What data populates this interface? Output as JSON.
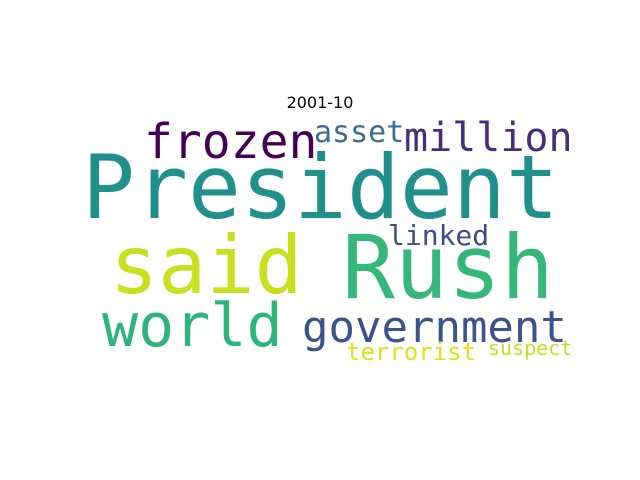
{
  "title": "2001-10",
  "words": [
    {
      "text": "President",
      "color": "#21908d"
    },
    {
      "text": "said",
      "color": "#c8e020"
    },
    {
      "text": "Rush",
      "color": "#35b779"
    },
    {
      "text": "world",
      "color": "#2eb37c"
    },
    {
      "text": "government",
      "color": "#3b528b"
    },
    {
      "text": "frozen",
      "color": "#440154"
    },
    {
      "text": "million",
      "color": "#472d7b"
    },
    {
      "text": "asset",
      "color": "#3e6d8e"
    },
    {
      "text": "linked",
      "color": "#3f4a8a"
    },
    {
      "text": "terrorist",
      "color": "#dde318"
    },
    {
      "text": "suspect",
      "color": "#c2df23"
    }
  ]
}
